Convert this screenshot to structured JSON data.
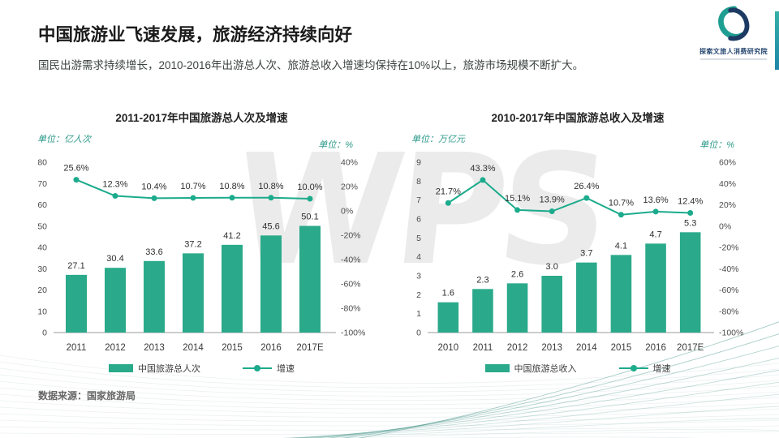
{
  "header": {
    "title": "中国旅游业飞速发展，旅游经济持续向好",
    "subtitle": "国民出游需求持续增长，2010-2016年出游总人次、旅游总收入增速均保持在10%以上，旅游市场规模不断扩大。"
  },
  "logo": {
    "name": "探索文旅人消费研究院"
  },
  "watermark": "WPS",
  "footer": {
    "source": "数据来源：国家旅游局"
  },
  "colors": {
    "teal": "#2aaa8a",
    "line": "#1cab8c",
    "unit": "#2f9b8b"
  },
  "chart_data": [
    {
      "type": "bar+line",
      "title": "2011-2017年中国旅游总人次及增速",
      "unit_left": "单位：亿人次",
      "unit_right": "单位：%",
      "categories": [
        "2011",
        "2012",
        "2013",
        "2014",
        "2015",
        "2016",
        "2017E"
      ],
      "bars": {
        "name": "中国旅游总人次",
        "values": [
          27.1,
          30.4,
          33.6,
          37.2,
          41.2,
          45.6,
          50.1
        ]
      },
      "line": {
        "name": "增速",
        "values": [
          25.6,
          12.3,
          10.4,
          10.7,
          10.8,
          10.8,
          10.0
        ]
      },
      "left_axis": {
        "min": 0,
        "max": 80,
        "step": 10
      },
      "right_axis": {
        "min": -100,
        "max": 40,
        "step": 20,
        "suffix": "%"
      },
      "grid": false,
      "legend_position": "bottom"
    },
    {
      "type": "bar+line",
      "title": "2010-2017年中国旅游总收入及增速",
      "unit_left": "单位：万亿元",
      "unit_right": "单位：%",
      "categories": [
        "2010",
        "2011",
        "2012",
        "2013",
        "2014",
        "2015",
        "2016",
        "2017E"
      ],
      "bars": {
        "name": "中国旅游总收入",
        "values": [
          1.6,
          2.3,
          2.6,
          3.0,
          3.7,
          4.1,
          4.7,
          5.3
        ]
      },
      "line": {
        "name": "增速",
        "values": [
          21.7,
          43.3,
          15.1,
          13.9,
          26.4,
          10.7,
          13.6,
          12.4
        ]
      },
      "left_axis": {
        "min": 0,
        "max": 9,
        "step": 1
      },
      "right_axis": {
        "min": -100,
        "max": 60,
        "step": 20,
        "suffix": "%"
      },
      "grid": false,
      "legend_position": "bottom"
    }
  ]
}
